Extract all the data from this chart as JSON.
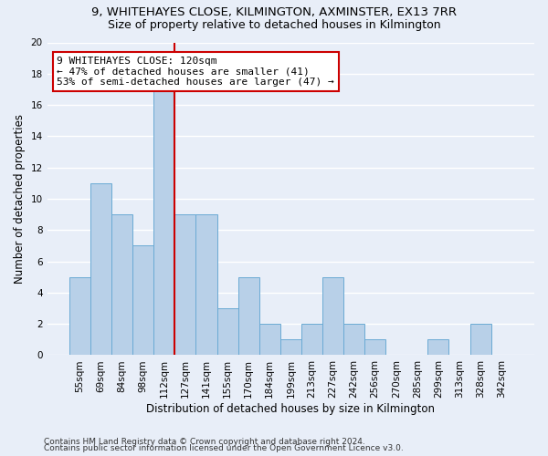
{
  "title1": "9, WHITEHAYES CLOSE, KILMINGTON, AXMINSTER, EX13 7RR",
  "title2": "Size of property relative to detached houses in Kilmington",
  "xlabel": "Distribution of detached houses by size in Kilmington",
  "ylabel": "Number of detached properties",
  "categories": [
    "55sqm",
    "69sqm",
    "84sqm",
    "98sqm",
    "112sqm",
    "127sqm",
    "141sqm",
    "155sqm",
    "170sqm",
    "184sqm",
    "199sqm",
    "213sqm",
    "227sqm",
    "242sqm",
    "256sqm",
    "270sqm",
    "285sqm",
    "299sqm",
    "313sqm",
    "328sqm",
    "342sqm"
  ],
  "values": [
    5,
    11,
    9,
    7,
    17,
    9,
    9,
    3,
    5,
    2,
    1,
    2,
    5,
    2,
    1,
    0,
    0,
    1,
    0,
    2,
    0
  ],
  "bar_color": "#b8d0e8",
  "bar_edge_color": "#6aaad4",
  "vline_x": 4.5,
  "vline_color": "#cc0000",
  "annotation_line1": "9 WHITEHAYES CLOSE: 120sqm",
  "annotation_line2": "← 47% of detached houses are smaller (41)",
  "annotation_line3": "53% of semi-detached houses are larger (47) →",
  "annotation_box_color": "#ffffff",
  "annotation_edge_color": "#cc0000",
  "ylim": [
    0,
    20
  ],
  "yticks": [
    0,
    2,
    4,
    6,
    8,
    10,
    12,
    14,
    16,
    18,
    20
  ],
  "footer1": "Contains HM Land Registry data © Crown copyright and database right 2024.",
  "footer2": "Contains public sector information licensed under the Open Government Licence v3.0.",
  "bg_color": "#e8eef8",
  "grid_color": "#ffffff",
  "title1_fontsize": 9.5,
  "title2_fontsize": 9,
  "xlabel_fontsize": 8.5,
  "ylabel_fontsize": 8.5,
  "tick_fontsize": 7.5,
  "annot_fontsize": 8,
  "footer_fontsize": 6.5
}
